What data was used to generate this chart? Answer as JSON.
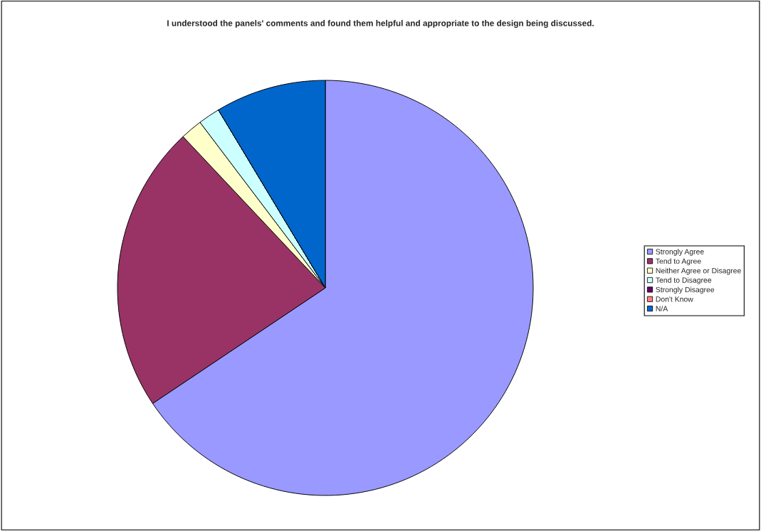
{
  "chart_data": {
    "type": "pie",
    "title": "I understood the panels' comments and found them helpful and appropriate to the design being discussed.",
    "categories": [
      "Strongly Agree",
      "Tend to Agree",
      "Neither Agree or Disagree",
      "Tend to Disagree",
      "Strongly Disagree",
      "Don't Know",
      "N/A"
    ],
    "values": [
      65.6,
      22.4,
      1.7,
      1.7,
      0,
      0,
      8.6
    ],
    "colors": [
      "#9999ff",
      "#993366",
      "#ffffcc",
      "#ccffff",
      "#660066",
      "#ff8080",
      "#0066cc"
    ],
    "legend": "right"
  }
}
